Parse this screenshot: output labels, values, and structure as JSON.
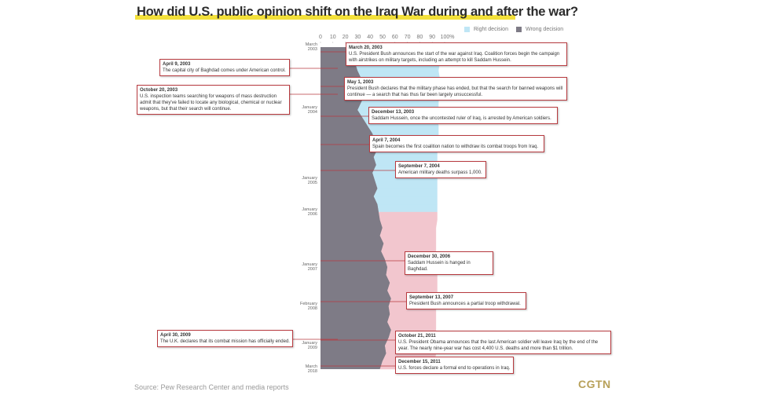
{
  "chart_data": {
    "type": "stacked-area",
    "title": "How did U.S. public opinion shift on the Iraq War during and after the war?",
    "categories": [
      "March\n2003",
      null,
      null,
      null,
      null,
      null,
      null,
      null,
      "January\n2004",
      null,
      null,
      null,
      null,
      null,
      null,
      null,
      null,
      "January\n2005",
      null,
      null,
      null,
      "January\n2006",
      null,
      null,
      null,
      null,
      null,
      null,
      "January\n2007",
      null,
      null,
      null,
      null,
      "February\n2008",
      null,
      null,
      null,
      null,
      "January\n2009",
      null,
      null,
      "March\n2018"
    ],
    "series": [
      {
        "name": "Wrong decision",
        "color": "#7e7b86",
        "values": [
          24,
          26,
          28,
          30,
          33,
          34,
          36,
          33,
          30,
          34,
          38,
          42,
          44,
          46,
          43,
          45,
          42,
          44,
          46,
          43,
          46,
          47,
          48,
          50,
          48,
          51,
          49,
          52,
          54,
          53,
          56,
          54,
          57,
          55,
          56,
          54,
          57,
          55,
          52,
          53,
          50,
          48
        ]
      },
      {
        "name": "Right decision",
        "color": "#bfe6f5",
        "values": [
          71,
          70,
          68,
          65,
          63,
          62,
          60,
          62,
          65,
          60,
          57,
          53,
          51,
          48,
          51,
          49,
          52,
          50,
          48,
          51,
          48,
          47,
          46,
          43,
          45,
          42,
          44,
          41,
          40,
          41,
          38,
          40,
          37,
          38,
          37,
          39,
          36,
          38,
          41,
          40,
          42,
          43
        ]
      }
    ],
    "minority_color": "#f2c6ce",
    "xlim": [
      0,
      100
    ],
    "xticks": [
      0,
      10,
      20,
      30,
      40,
      50,
      60,
      70,
      80,
      90,
      {
        "value": 100,
        "label": "100%"
      }
    ],
    "annotations": [
      {
        "date": "March 20, 2003",
        "text": "U.S. President Bush announces the start of the war against Iraq. Coalition forces begin the campaign with airstrikes on military targets, including an attempt to kill Saddam Hussein."
      },
      {
        "date": "April 9, 2003",
        "text": "The capital city of Baghdad comes under American control."
      },
      {
        "date": "May 1, 2003",
        "text": "President Bush declares that the military phase has ended, but that the search for banned weapons will continue — a search that has thus far been largely unsuccessful."
      },
      {
        "date": "October 20, 2003",
        "text": "U.S. inspection teams searching for weapons of mass destruction admit that they've failed to locate any biological, chemical or nuclear weapons, but that their search will continue."
      },
      {
        "date": "December 13, 2003",
        "text": "Saddam Hussein, once the uncontested ruler of Iraq, is arrested by American soldiers."
      },
      {
        "date": "April 7, 2004",
        "text": "Spain becomes the first coalition nation to withdraw its combat troops from Iraq."
      },
      {
        "date": "September 7, 2004",
        "text": "American military deaths surpass 1,000."
      },
      {
        "date": "December 30, 2006",
        "text": "Saddam Hussein is hanged in Baghdad."
      },
      {
        "date": "September 13, 2007",
        "text": "President Bush announces a partial troop withdrawal."
      },
      {
        "date": "April 30, 2009",
        "text": "The U.K. declares that its combat mission has officially ended."
      },
      {
        "date": "October 21, 2011",
        "text": "U.S. President Obama announces that the last American soldier will leave Iraq by the end of the year. The nearly nine-year war has cost 4,400 U.S. deaths and more than $1 trillion."
      },
      {
        "date": "December 15, 2011",
        "text": "U.S. forces declare a formal end to operations in Iraq."
      }
    ],
    "source": "Source: Pew Research Center and media reports",
    "logo": "CGTN"
  }
}
